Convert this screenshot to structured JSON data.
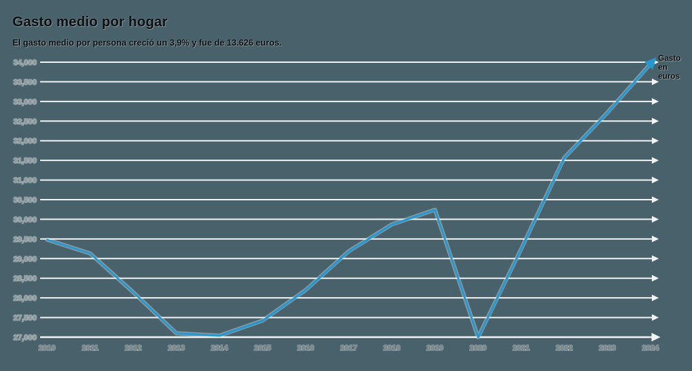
{
  "header": {
    "title": "Gasto medio por hogar",
    "subtitle": "El gasto medio por persona creció un 3,9% y fue de 13.626 euros."
  },
  "chart_data": {
    "type": "line",
    "title": "Gasto medio por hogar",
    "subtitle": "El gasto medio por persona creció un 3,9% y fue de 13.626 euros.",
    "annotation": "Gasto en euros",
    "x": [
      2010,
      2011,
      2012,
      2013,
      2014,
      2015,
      2016,
      2017,
      2018,
      2019,
      2020,
      2021,
      2022,
      2023,
      2024
    ],
    "series": [
      {
        "name": "Gasto medio por hogar (euros)",
        "values": [
          29482,
          29130,
          28143,
          27098,
          27038,
          27420,
          28200,
          29188,
          29871,
          30243,
          26996,
          29244,
          31568,
          32716,
          33958
        ]
      }
    ],
    "ylim": [
      27000,
      34000
    ],
    "ytick_step": 500,
    "ytick_labels": [
      "27,000",
      "27,500",
      "28,000",
      "28,500",
      "29,000",
      "29,500",
      "30,000",
      "30,500",
      "31,000",
      "31,500",
      "32,000",
      "32,500",
      "33,000",
      "33,500",
      "34,000"
    ],
    "grid": true,
    "legend_position": "annotation-top-right",
    "style": "hand-drawn-sketchy"
  },
  "colors": {
    "background": "#48616a",
    "gridline": "#f1f3f4",
    "line": "#2697d1",
    "y_tick_label": "#9aa4a8",
    "x_tick_label": "#7e898e",
    "title_text": "#0c0f11"
  }
}
